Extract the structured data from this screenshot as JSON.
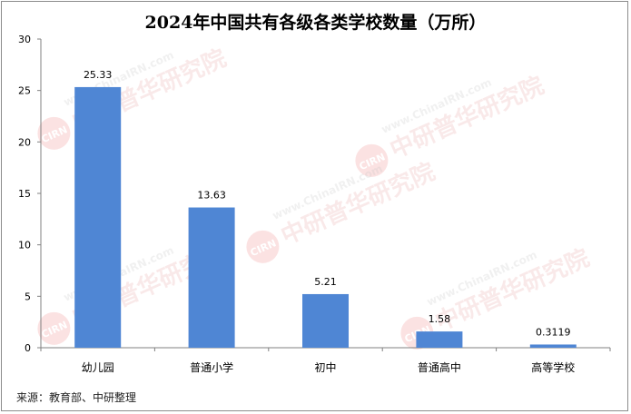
{
  "chart_data": {
    "type": "bar",
    "title": "2024年中国共有各级各类学校数量（万所）",
    "categories": [
      "幼儿园",
      "普通小学",
      "初中",
      "普通高中",
      "高等学校"
    ],
    "values": [
      25.33,
      13.63,
      5.21,
      1.58,
      0.3119
    ],
    "value_labels": [
      "25.33",
      "13.63",
      "5.21",
      "1.58",
      "0.3119"
    ],
    "ylim": [
      0,
      30
    ],
    "yticks": [
      "0",
      "5",
      "10",
      "15",
      "20",
      "25",
      "30"
    ],
    "bar_color": "#4f86d4",
    "grid": false,
    "legend": "none"
  },
  "source": "来源：教育部、中研整理",
  "watermark": {
    "brand": "中研普华研究院",
    "url": "www.ChinaIRN.com",
    "logo": "CIRN"
  }
}
